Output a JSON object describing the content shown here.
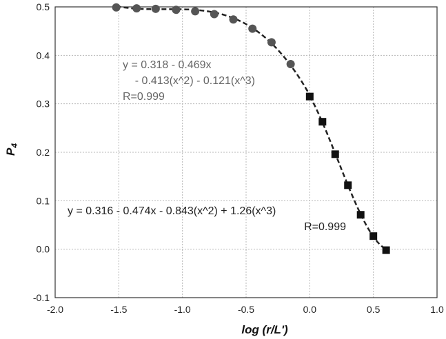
{
  "chart_data": {
    "type": "scatter",
    "xlabel": "log (r/L')",
    "ylabel": "P",
    "ylabel_subscript": "4",
    "xlim": [
      -2.0,
      1.0
    ],
    "ylim": [
      -0.1,
      0.5
    ],
    "x_ticks": [
      "-2.0",
      "-1.5",
      "-1.0",
      "-0.5",
      "0.0",
      "0.5",
      "1.0"
    ],
    "y_ticks": [
      "-0.1",
      "0.0",
      "0.1",
      "0.2",
      "0.3",
      "0.4",
      "0.5"
    ],
    "grid": true,
    "series": [
      {
        "marker": "circle",
        "color": "#555555",
        "points": [
          {
            "x": -1.52,
            "y": 0.499
          },
          {
            "x": -1.36,
            "y": 0.497
          },
          {
            "x": -1.21,
            "y": 0.496
          },
          {
            "x": -1.05,
            "y": 0.494
          },
          {
            "x": -0.9,
            "y": 0.491
          },
          {
            "x": -0.75,
            "y": 0.485
          },
          {
            "x": -0.6,
            "y": 0.474
          },
          {
            "x": -0.45,
            "y": 0.455
          },
          {
            "x": -0.3,
            "y": 0.427
          },
          {
            "x": -0.15,
            "y": 0.382
          }
        ],
        "fit": {
          "coefficients": [
            0.318,
            -0.469,
            -0.413,
            -0.121
          ],
          "x_range": [
            -1.52,
            0.0
          ]
        }
      },
      {
        "marker": "square",
        "color": "#111111",
        "points": [
          {
            "x": 0.0,
            "y": 0.315
          },
          {
            "x": 0.1,
            "y": 0.263
          },
          {
            "x": 0.2,
            "y": 0.196
          },
          {
            "x": 0.3,
            "y": 0.132
          },
          {
            "x": 0.4,
            "y": 0.071
          },
          {
            "x": 0.5,
            "y": 0.027
          },
          {
            "x": 0.6,
            "y": -0.002
          }
        ],
        "fit": {
          "coefficients": [
            0.316,
            -0.474,
            -0.843,
            1.26
          ],
          "x_range": [
            0.0,
            0.6
          ]
        }
      }
    ],
    "annotations": [
      {
        "lines": [
          "y = 0.318 - 0.469x",
          "    - 0.413(x^2) - 0.121(x^3)",
          "R=0.999"
        ],
        "color": "#666666"
      },
      {
        "lines": [
          "y = 0.316 - 0.474x - 0.843(x^2) + 1.26(x^3)",
          "R=0.999"
        ],
        "color": "#222222"
      }
    ]
  }
}
